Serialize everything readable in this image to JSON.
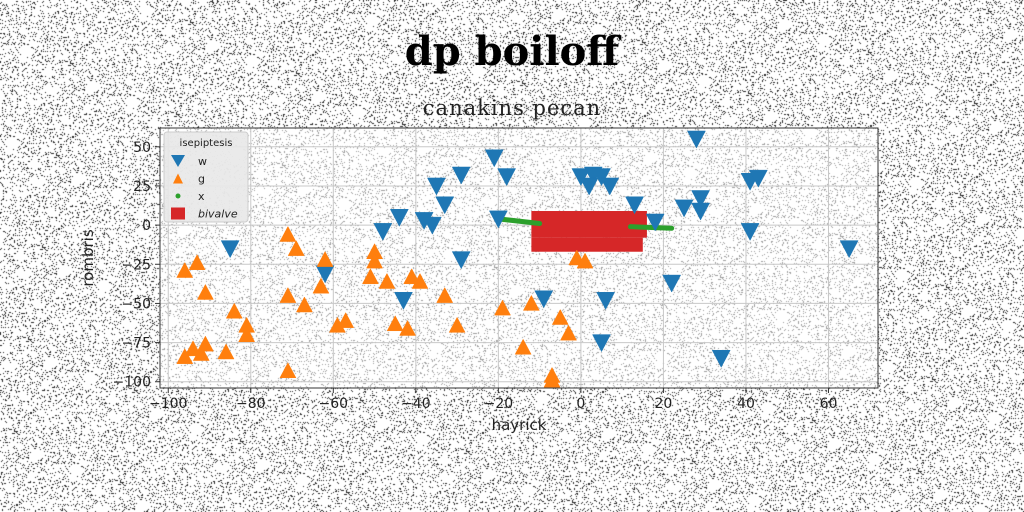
{
  "chart_data": {
    "type": "scatter",
    "title": "dp boiloff",
    "subtitle": "canakins pecan",
    "xlabel": "hayrick",
    "ylabel": "rombris",
    "xlim": [
      -102,
      72
    ],
    "ylim": [
      -104,
      62
    ],
    "xticks": [
      -100,
      -80,
      -60,
      -40,
      -20,
      0,
      20,
      40,
      60
    ],
    "yticks": [
      50,
      25,
      0,
      -25,
      -50,
      -75,
      -100
    ],
    "grid": true,
    "legend": {
      "title": "isepiptesis",
      "position": "top-left"
    },
    "series": [
      {
        "name": "w",
        "marker": "triangle-down",
        "color": "#1f77b4",
        "points": [
          [
            28,
            55
          ],
          [
            -21,
            43
          ],
          [
            -29,
            32
          ],
          [
            -18,
            31
          ],
          [
            -35,
            25
          ],
          [
            -33,
            13
          ],
          [
            -44,
            5
          ],
          [
            -38,
            3
          ],
          [
            -36,
            0
          ],
          [
            -48,
            -4
          ],
          [
            -85,
            -15
          ],
          [
            -29,
            -22
          ],
          [
            -62,
            -31
          ],
          [
            -20,
            4
          ],
          [
            0,
            31
          ],
          [
            3,
            32
          ],
          [
            5,
            31
          ],
          [
            2,
            25
          ],
          [
            7,
            25
          ],
          [
            13,
            13
          ],
          [
            18,
            2
          ],
          [
            25,
            11
          ],
          [
            29,
            17
          ],
          [
            29,
            9
          ],
          [
            41,
            28
          ],
          [
            43,
            30
          ],
          [
            41,
            -4
          ],
          [
            65,
            -15
          ],
          [
            22,
            -37
          ],
          [
            -9,
            -47
          ],
          [
            -43,
            -48
          ],
          [
            6,
            -48
          ],
          [
            5,
            -75
          ],
          [
            34,
            -85
          ]
        ]
      },
      {
        "name": "g",
        "marker": "triangle-up",
        "color": "#ff7f0e",
        "points": [
          [
            -71,
            -6
          ],
          [
            -69,
            -15
          ],
          [
            -93,
            -24
          ],
          [
            -96,
            -29
          ],
          [
            -62,
            -22
          ],
          [
            -63,
            -39
          ],
          [
            -50,
            -17
          ],
          [
            -50,
            -23
          ],
          [
            -51,
            -33
          ],
          [
            -47,
            -36
          ],
          [
            -41,
            -33
          ],
          [
            -39,
            -36
          ],
          [
            -91,
            -43
          ],
          [
            -71,
            -45
          ],
          [
            -67,
            -51
          ],
          [
            -84,
            -55
          ],
          [
            -57,
            -61
          ],
          [
            -59,
            -64
          ],
          [
            -33,
            -45
          ],
          [
            -30,
            -64
          ],
          [
            -45,
            -63
          ],
          [
            -42,
            -66
          ],
          [
            -19,
            -53
          ],
          [
            -12,
            -50
          ],
          [
            -5,
            -59
          ],
          [
            -3,
            -69
          ],
          [
            -81,
            -64
          ],
          [
            -81,
            -70
          ],
          [
            -91,
            -76
          ],
          [
            -94,
            -79
          ],
          [
            -96,
            -84
          ],
          [
            -92,
            -82
          ],
          [
            -86,
            -81
          ],
          [
            -71,
            -93
          ],
          [
            -14,
            -78
          ],
          [
            -7,
            -96
          ],
          [
            -7,
            -99
          ],
          [
            -1,
            -21
          ],
          [
            1,
            -23
          ]
        ]
      },
      {
        "name": "x",
        "marker": "circle",
        "color": "#2ca02c",
        "line_segments": [
          [
            [
              -20,
              4
            ],
            [
              -10,
              1
            ]
          ],
          [
            [
              12,
              -1
            ],
            [
              22,
              -2
            ]
          ]
        ]
      },
      {
        "name": "bivalve",
        "marker": "square",
        "color": "#d62728",
        "region": {
          "x": [
            -12,
            16
          ],
          "y": [
            -8,
            9
          ],
          "x_bottom": [
            -12,
            15
          ],
          "y_bottom": [
            -17,
            -8
          ]
        }
      }
    ]
  }
}
